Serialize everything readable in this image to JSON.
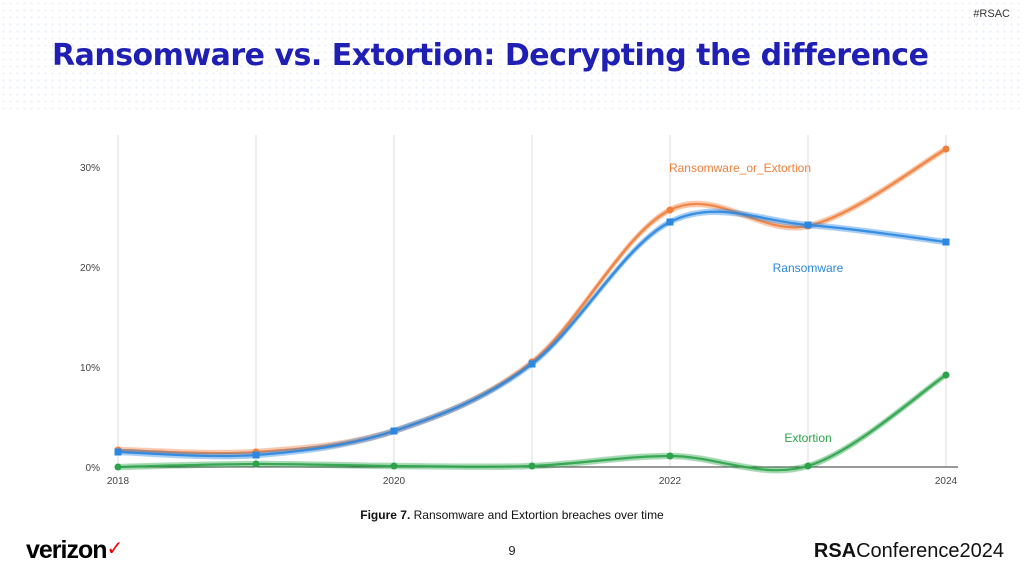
{
  "header": {
    "tag": "#RSAC",
    "title": "Ransomware vs. Extortion: Decrypting the difference"
  },
  "caption": {
    "label": "Figure 7.",
    "text": " Ransomware and Extortion breaches over time"
  },
  "footer": {
    "page": "9",
    "left_logo": "verizon",
    "right_logo_bold": "RSA",
    "right_logo_rest": "Conference2024"
  },
  "chart_data": {
    "type": "line",
    "x": [
      2018,
      2019,
      2020,
      2021,
      2022,
      2023,
      2024
    ],
    "xticks": [
      "2018",
      "2020",
      "2022",
      "2024"
    ],
    "yticks": [
      "0%",
      "10%",
      "20%",
      "30%"
    ],
    "ylim": [
      0,
      32
    ],
    "grid": true,
    "series": [
      {
        "name": "Ransomware_or_Extortion",
        "color": "#f07f3c",
        "values": [
          1.7,
          1.5,
          3.6,
          10.5,
          25.7,
          24.1,
          31.8
        ]
      },
      {
        "name": "Ransomware",
        "color": "#2b87e0",
        "values": [
          1.5,
          1.2,
          3.6,
          10.3,
          24.5,
          24.2,
          22.5
        ]
      },
      {
        "name": "Extortion",
        "color": "#2ca34a",
        "values": [
          0,
          0.3,
          0.1,
          0.1,
          1.1,
          0.1,
          9.2
        ]
      }
    ]
  }
}
